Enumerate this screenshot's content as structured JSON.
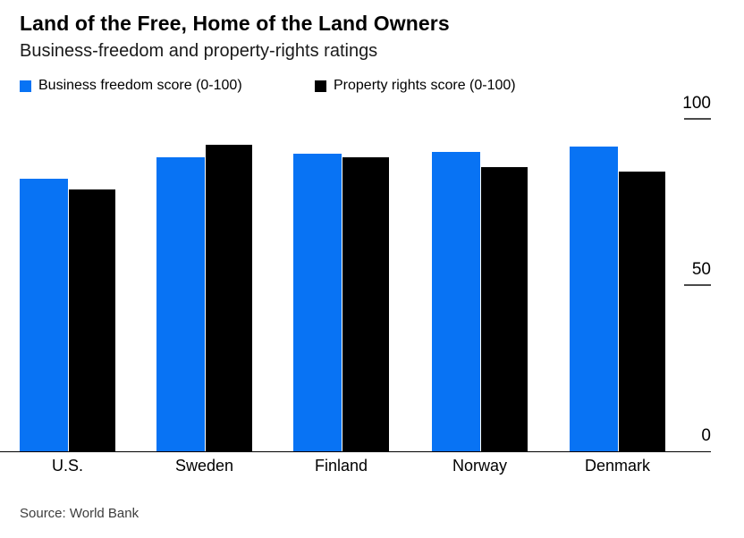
{
  "header": {
    "title": "Land of the Free, Home of the Land Owners",
    "subtitle": "Business-freedom and property-rights ratings"
  },
  "legend": [
    {
      "label": "Business freedom score (0-100)",
      "color": "#0873f4"
    },
    {
      "label": "Property rights score (0-100)",
      "color": "#000000"
    }
  ],
  "source": "Source: World Bank",
  "chart_data": {
    "type": "bar",
    "title": "Land of the Free, Home of the Land Owners",
    "subtitle": "Business-freedom and property-rights ratings",
    "categories": [
      "U.S.",
      "Sweden",
      "Finland",
      "Norway",
      "Denmark"
    ],
    "series": [
      {
        "name": "Business freedom score (0-100)",
        "color": "#0873f4",
        "values": [
          82,
          88.4,
          89.5,
          90.1,
          91.7
        ]
      },
      {
        "name": "Property rights score (0-100)",
        "color": "#000000",
        "values": [
          78.8,
          92.2,
          88.4,
          85.5,
          84.1
        ]
      }
    ],
    "xlabel": "",
    "ylabel": "",
    "ylim": [
      0,
      100
    ],
    "yticks": [
      0,
      50,
      100
    ],
    "ytick_side": "right",
    "grid": false,
    "legend_position": "top-left",
    "source": "Source: World Bank"
  },
  "colors": {
    "background": "#ffffff",
    "axis": "#000000",
    "tick": "#4a4a4a",
    "text": "#000000"
  }
}
